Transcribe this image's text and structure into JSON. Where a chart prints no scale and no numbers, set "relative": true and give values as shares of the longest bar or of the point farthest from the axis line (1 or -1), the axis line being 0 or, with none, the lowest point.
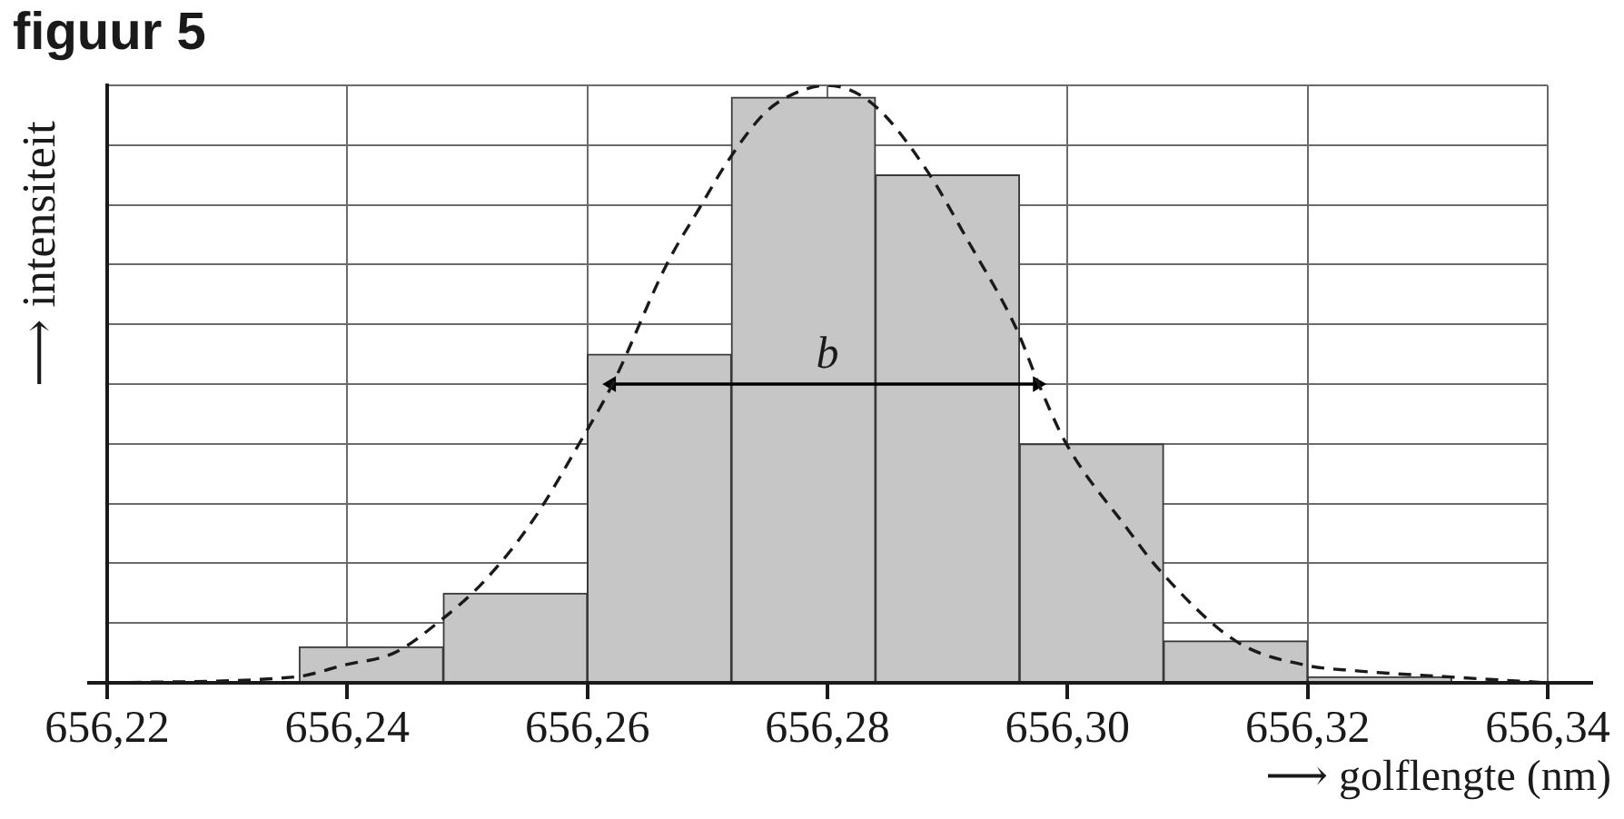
{
  "chart_data": {
    "type": "histogram",
    "title": "figuur 5",
    "xlabel": "⟶ golflengte (nm)",
    "ylabel": "⟶ intensiteit",
    "relative": true,
    "bins": [
      656.236,
      656.248,
      656.26,
      656.272,
      656.284,
      656.296,
      656.308,
      656.32,
      656.332
    ],
    "values": [
      0.06,
      0.15,
      0.55,
      0.98,
      0.85,
      0.4,
      0.07,
      0.01
    ],
    "color": "#c6c6c6",
    "xlim": [
      656.22,
      656.34
    ],
    "xticks": [
      {
        "value": 656.22,
        "label": "656,22"
      },
      {
        "value": 656.24,
        "label": "656,24"
      },
      {
        "value": 656.26,
        "label": "656,26"
      },
      {
        "value": 656.28,
        "label": "656,28"
      },
      {
        "value": 656.3,
        "label": "656,30"
      },
      {
        "value": 656.32,
        "label": "656,32"
      },
      {
        "value": 656.34,
        "label": "656,34"
      }
    ],
    "grid": true,
    "series": [
      {
        "type": "line",
        "color": "#1a1a1a",
        "line_style": "dashed",
        "marker": "none",
        "x": [
          656.22,
          656.2357,
          656.2398,
          656.2439,
          656.2475,
          656.2514,
          656.2554,
          656.2596,
          656.2621,
          656.2666,
          656.2695,
          656.2716,
          656.2746,
          656.2766,
          656.28,
          656.2837,
          656.2882,
          656.2917,
          656.2958,
          656.2976,
          656.2999,
          656.3049,
          656.3076,
          656.314,
          656.3197,
          656.3241,
          656.3317,
          656.34
        ],
        "values": [
          0,
          0.01,
          0.03,
          0.05,
          0.1,
          0.17,
          0.27,
          0.41,
          0.5,
          0.7,
          0.8,
          0.87,
          0.95,
          0.98,
          1,
          0.97,
          0.86,
          0.74,
          0.59,
          0.5,
          0.4,
          0.26,
          0.19,
          0.07,
          0.03,
          0.02,
          0.01,
          0
        ]
      },
      {
        "type": "line",
        "color": "#000000",
        "line_style": "solid",
        "marker": "triangle",
        "x": [
          656.262,
          656.2975
        ],
        "values": [
          0.5,
          0.5
        ]
      }
    ],
    "annotations": [
      {
        "text": "b",
        "x": 656.28,
        "y": 0.5
      }
    ]
  }
}
